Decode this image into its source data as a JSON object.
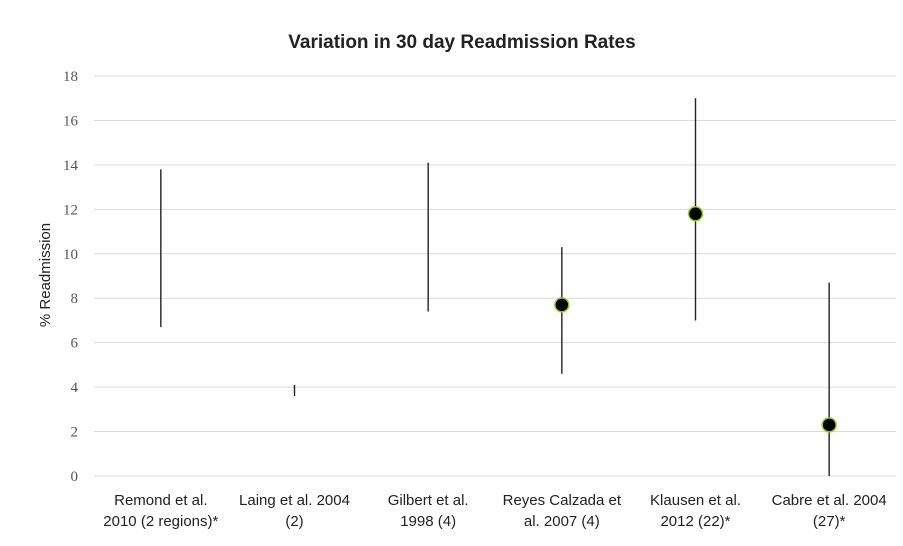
{
  "chart_data": {
    "type": "range",
    "title": "Variation in 30 day Readmission Rates",
    "xlabel": "",
    "ylabel": "% Readmission",
    "ylim": [
      0,
      18
    ],
    "yticks": [
      0,
      2,
      4,
      6,
      8,
      10,
      12,
      14,
      16,
      18
    ],
    "grid": true,
    "categories": [
      [
        "Remond et al.",
        "2010 (2 regions)*"
      ],
      [
        "Laing et al. 2004",
        "(2)"
      ],
      [
        "Gilbert et al.",
        "1998 (4)"
      ],
      [
        "Reyes Calzada et",
        "al. 2007 (4)"
      ],
      [
        "Klausen et al.",
        "2012 (22)*"
      ],
      [
        "Cabre et al. 2004",
        "(27)*"
      ]
    ],
    "series": [
      {
        "low": 6.7,
        "high": 13.8,
        "point": null
      },
      {
        "low": 3.6,
        "high": 4.1,
        "point": null
      },
      {
        "low": 7.4,
        "high": 14.1,
        "point": null
      },
      {
        "low": 4.6,
        "high": 10.3,
        "point": 7.7
      },
      {
        "low": 7.0,
        "high": 17.0,
        "point": 11.8
      },
      {
        "low": 0.0,
        "high": 8.7,
        "point": 2.3
      }
    ],
    "colors": {
      "range": "#222222",
      "point_fill": "#000000",
      "point_edge": "#9acd32",
      "grid": "#d9d9d9"
    }
  }
}
